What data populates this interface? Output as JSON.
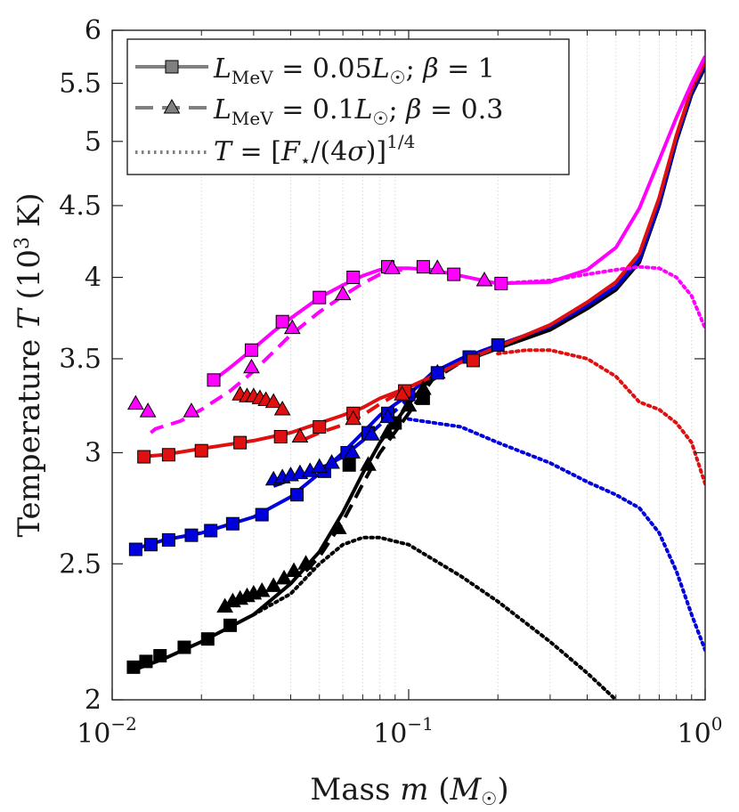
{
  "chart_data": {
    "type": "line",
    "xscale": "log",
    "yscale": "log",
    "xlim": [
      0.01,
      1
    ],
    "ylim": [
      2,
      6
    ],
    "xlabel": "Mass m (M☉)",
    "ylabel": "Temperature T (10³ K)",
    "x_ticks": [
      {
        "value": 0.01,
        "base": "10",
        "exp": "−2"
      },
      {
        "value": 0.1,
        "base": "10",
        "exp": "−1"
      },
      {
        "value": 1,
        "base": "10",
        "exp": "0"
      }
    ],
    "y_ticks": [
      {
        "value": 2,
        "label": "2"
      },
      {
        "value": 2.5,
        "label": "2.5"
      },
      {
        "value": 3,
        "label": "3"
      },
      {
        "value": 3.5,
        "label": "3.5"
      },
      {
        "value": 4,
        "label": "4"
      },
      {
        "value": 4.5,
        "label": "4.5"
      },
      {
        "value": 5,
        "label": "5"
      },
      {
        "value": 5.5,
        "label": "5.5"
      },
      {
        "value": 6,
        "label": "6"
      }
    ],
    "grid": "minor-x",
    "legend": {
      "position": "top-left",
      "entries": [
        {
          "label": "L_MeV = 0.05L☉; β = 1",
          "style": "solid",
          "marker": "square"
        },
        {
          "label": "L_MeV = 0.1L☉; β = 0.3",
          "style": "dashed",
          "marker": "triangle"
        },
        {
          "label": "T = [F⋆/(4σ)]^1/4",
          "style": "dotted",
          "marker": "none"
        }
      ]
    },
    "series": [
      {
        "name": "black-solid",
        "color": "#000000",
        "style": "solid",
        "x": [
          0.0118,
          0.015,
          0.02,
          0.03,
          0.04,
          0.05,
          0.06,
          0.07,
          0.08,
          0.1,
          0.12,
          0.15,
          0.2,
          0.3,
          0.4,
          0.5,
          0.6,
          0.7,
          0.8,
          0.9,
          1.0
        ],
        "y": [
          2.1,
          2.14,
          2.2,
          2.3,
          2.42,
          2.55,
          2.72,
          2.9,
          3.05,
          3.25,
          3.4,
          3.48,
          3.56,
          3.67,
          3.8,
          3.92,
          4.1,
          4.5,
          5.0,
          5.4,
          5.65
        ]
      },
      {
        "name": "black-dashed",
        "color": "#000000",
        "style": "dashed",
        "x": [
          0.045,
          0.05,
          0.06,
          0.07,
          0.08,
          0.1,
          0.12,
          0.15,
          0.2
        ],
        "y": [
          2.47,
          2.53,
          2.68,
          2.85,
          3.0,
          3.2,
          3.38,
          3.48,
          3.56
        ]
      },
      {
        "name": "black-dotted",
        "color": "#000000",
        "style": "dotted",
        "x": [
          0.03,
          0.04,
          0.05,
          0.06,
          0.07,
          0.08,
          0.1,
          0.15,
          0.2,
          0.3,
          0.4,
          0.5
        ],
        "y": [
          2.3,
          2.38,
          2.5,
          2.58,
          2.61,
          2.61,
          2.58,
          2.45,
          2.35,
          2.2,
          2.09,
          2.0
        ]
      },
      {
        "name": "blue-solid",
        "color": "#0000dd",
        "style": "solid",
        "x": [
          0.0118,
          0.015,
          0.02,
          0.03,
          0.04,
          0.05,
          0.06,
          0.07,
          0.08,
          0.1,
          0.12,
          0.15,
          0.2,
          0.3,
          0.4,
          0.5,
          0.6,
          0.7,
          0.8,
          0.9,
          1.0
        ],
        "y": [
          2.56,
          2.6,
          2.63,
          2.7,
          2.79,
          2.9,
          3.0,
          3.1,
          3.19,
          3.3,
          3.42,
          3.5,
          3.58,
          3.69,
          3.82,
          3.94,
          4.12,
          4.52,
          5.02,
          5.42,
          5.67
        ]
      },
      {
        "name": "blue-dashed",
        "color": "#0000dd",
        "style": "dashed",
        "x": [
          0.035,
          0.04,
          0.05,
          0.06,
          0.07,
          0.08,
          0.1
        ],
        "y": [
          2.84,
          2.87,
          2.92,
          2.98,
          3.06,
          3.14,
          3.28
        ]
      },
      {
        "name": "blue-dotted",
        "color": "#0000dd",
        "style": "dotted",
        "x": [
          0.1,
          0.15,
          0.2,
          0.3,
          0.4,
          0.5,
          0.6,
          0.7,
          0.8,
          0.9,
          1.0
        ],
        "y": [
          3.17,
          3.13,
          3.05,
          2.95,
          2.86,
          2.8,
          2.74,
          2.63,
          2.47,
          2.3,
          2.17
        ]
      },
      {
        "name": "red-solid",
        "color": "#e01010",
        "style": "solid",
        "x": [
          0.0125,
          0.015,
          0.02,
          0.03,
          0.04,
          0.05,
          0.06,
          0.07,
          0.08,
          0.1,
          0.12,
          0.15,
          0.2,
          0.3,
          0.4,
          0.5,
          0.6,
          0.7,
          0.8,
          0.9,
          1.0
        ],
        "y": [
          2.98,
          2.99,
          3.02,
          3.06,
          3.1,
          3.15,
          3.19,
          3.23,
          3.28,
          3.34,
          3.4,
          3.48,
          3.57,
          3.7,
          3.84,
          3.97,
          4.16,
          4.56,
          5.05,
          5.45,
          5.7
        ]
      },
      {
        "name": "red-dashed",
        "color": "#e01010",
        "style": "dashed",
        "x": [
          0.045,
          0.05,
          0.06,
          0.07,
          0.08,
          0.1
        ],
        "y": [
          3.07,
          3.1,
          3.14,
          3.19,
          3.25,
          3.34
        ]
      },
      {
        "name": "red-dotted",
        "color": "#e01010",
        "style": "dotted",
        "x": [
          0.2,
          0.25,
          0.3,
          0.4,
          0.5,
          0.6,
          0.7,
          0.8,
          0.9,
          1.0
        ],
        "y": [
          3.53,
          3.55,
          3.55,
          3.5,
          3.4,
          3.26,
          3.22,
          3.15,
          3.05,
          2.85
        ]
      },
      {
        "name": "magenta-solid",
        "color": "#ff00ff",
        "style": "solid",
        "x": [
          0.022,
          0.025,
          0.03,
          0.035,
          0.04,
          0.05,
          0.06,
          0.07,
          0.08,
          0.09,
          0.1,
          0.12,
          0.15,
          0.2,
          0.3,
          0.4,
          0.5,
          0.6,
          0.7,
          0.8,
          0.9,
          1.0
        ],
        "y": [
          3.38,
          3.45,
          3.56,
          3.66,
          3.74,
          3.87,
          3.95,
          4.01,
          4.05,
          4.06,
          4.06,
          4.05,
          4.01,
          3.96,
          3.97,
          4.05,
          4.2,
          4.48,
          4.85,
          5.2,
          5.5,
          5.75
        ]
      },
      {
        "name": "magenta-dashed",
        "color": "#ff00ff",
        "style": "dashed",
        "x": [
          0.0135,
          0.014,
          0.017,
          0.02,
          0.025,
          0.03,
          0.035,
          0.04,
          0.05,
          0.06,
          0.07,
          0.08,
          0.1
        ],
        "y": [
          3.1,
          3.12,
          3.16,
          3.22,
          3.32,
          3.43,
          3.54,
          3.64,
          3.78,
          3.88,
          3.96,
          4.02,
          4.06
        ]
      },
      {
        "name": "magenta-dotted",
        "color": "#ff00ff",
        "style": "dotted",
        "x": [
          0.2,
          0.3,
          0.4,
          0.5,
          0.6,
          0.7,
          0.8,
          0.9,
          1.0
        ],
        "y": [
          3.96,
          3.98,
          4.02,
          4.05,
          4.07,
          4.06,
          4.0,
          3.88,
          3.68
        ]
      }
    ],
    "markers": [
      {
        "color": "#000000",
        "shape": "square",
        "x": [
          0.0118,
          0.013,
          0.0145,
          0.0175,
          0.021,
          0.025,
          0.063,
          0.09,
          0.112
        ],
        "y": [
          2.11,
          2.13,
          2.15,
          2.18,
          2.21,
          2.26,
          2.94,
          3.15,
          3.28
        ]
      },
      {
        "color": "#000000",
        "shape": "triangle",
        "x": [
          0.024,
          0.0255,
          0.027,
          0.0285,
          0.03,
          0.032,
          0.035,
          0.038,
          0.041,
          0.045,
          0.058,
          0.073,
          0.085,
          0.1,
          0.112,
          0.125
        ],
        "y": [
          2.33,
          2.35,
          2.36,
          2.37,
          2.38,
          2.39,
          2.41,
          2.44,
          2.47,
          2.5,
          2.65,
          2.94,
          3.1,
          3.24,
          3.33,
          3.42
        ]
      },
      {
        "color": "#0000dd",
        "shape": "square",
        "x": [
          0.012,
          0.0135,
          0.0155,
          0.0185,
          0.0215,
          0.0255,
          0.032,
          0.042,
          0.052,
          0.062,
          0.073,
          0.085,
          0.1,
          0.125,
          0.16,
          0.2
        ],
        "y": [
          2.56,
          2.58,
          2.6,
          2.62,
          2.64,
          2.67,
          2.71,
          2.8,
          2.91,
          3.0,
          3.1,
          3.2,
          3.3,
          3.42,
          3.51,
          3.58
        ]
      },
      {
        "color": "#0000dd",
        "shape": "triangle",
        "x": [
          0.035,
          0.0375,
          0.04,
          0.043,
          0.0465,
          0.05,
          0.055,
          0.0645,
          0.075,
          0.085
        ],
        "y": [
          2.87,
          2.88,
          2.89,
          2.9,
          2.91,
          2.93,
          2.95,
          3.0,
          3.09,
          3.18
        ]
      },
      {
        "color": "#e01010",
        "shape": "square",
        "x": [
          0.0128,
          0.0155,
          0.02,
          0.027,
          0.037,
          0.05,
          0.065,
          0.097,
          0.165
        ],
        "y": [
          2.98,
          2.99,
          3.01,
          3.05,
          3.08,
          3.13,
          3.2,
          3.32,
          3.49
        ]
      },
      {
        "color": "#e01010",
        "shape": "triangle",
        "x": [
          0.027,
          0.0285,
          0.03,
          0.0315,
          0.033,
          0.035,
          0.0375,
          0.043,
          0.065,
          0.095
        ],
        "y": [
          3.3,
          3.29,
          3.29,
          3.28,
          3.27,
          3.26,
          3.22,
          3.08,
          3.17,
          3.3
        ]
      },
      {
        "color": "#ff00ff",
        "shape": "square",
        "x": [
          0.022,
          0.0295,
          0.0375,
          0.05,
          0.065,
          0.085,
          0.112,
          0.142,
          0.205
        ],
        "y": [
          3.38,
          3.55,
          3.72,
          3.87,
          4.0,
          4.07,
          4.07,
          4.02,
          3.96
        ]
      },
      {
        "color": "#ff00ff",
        "shape": "triangle",
        "x": [
          0.012,
          0.0132,
          0.0185,
          0.0295,
          0.0405,
          0.06,
          0.088,
          0.125,
          0.18
        ],
        "y": [
          3.25,
          3.21,
          3.21,
          3.45,
          3.68,
          3.89,
          4.06,
          4.06,
          3.98
        ]
      }
    ]
  }
}
